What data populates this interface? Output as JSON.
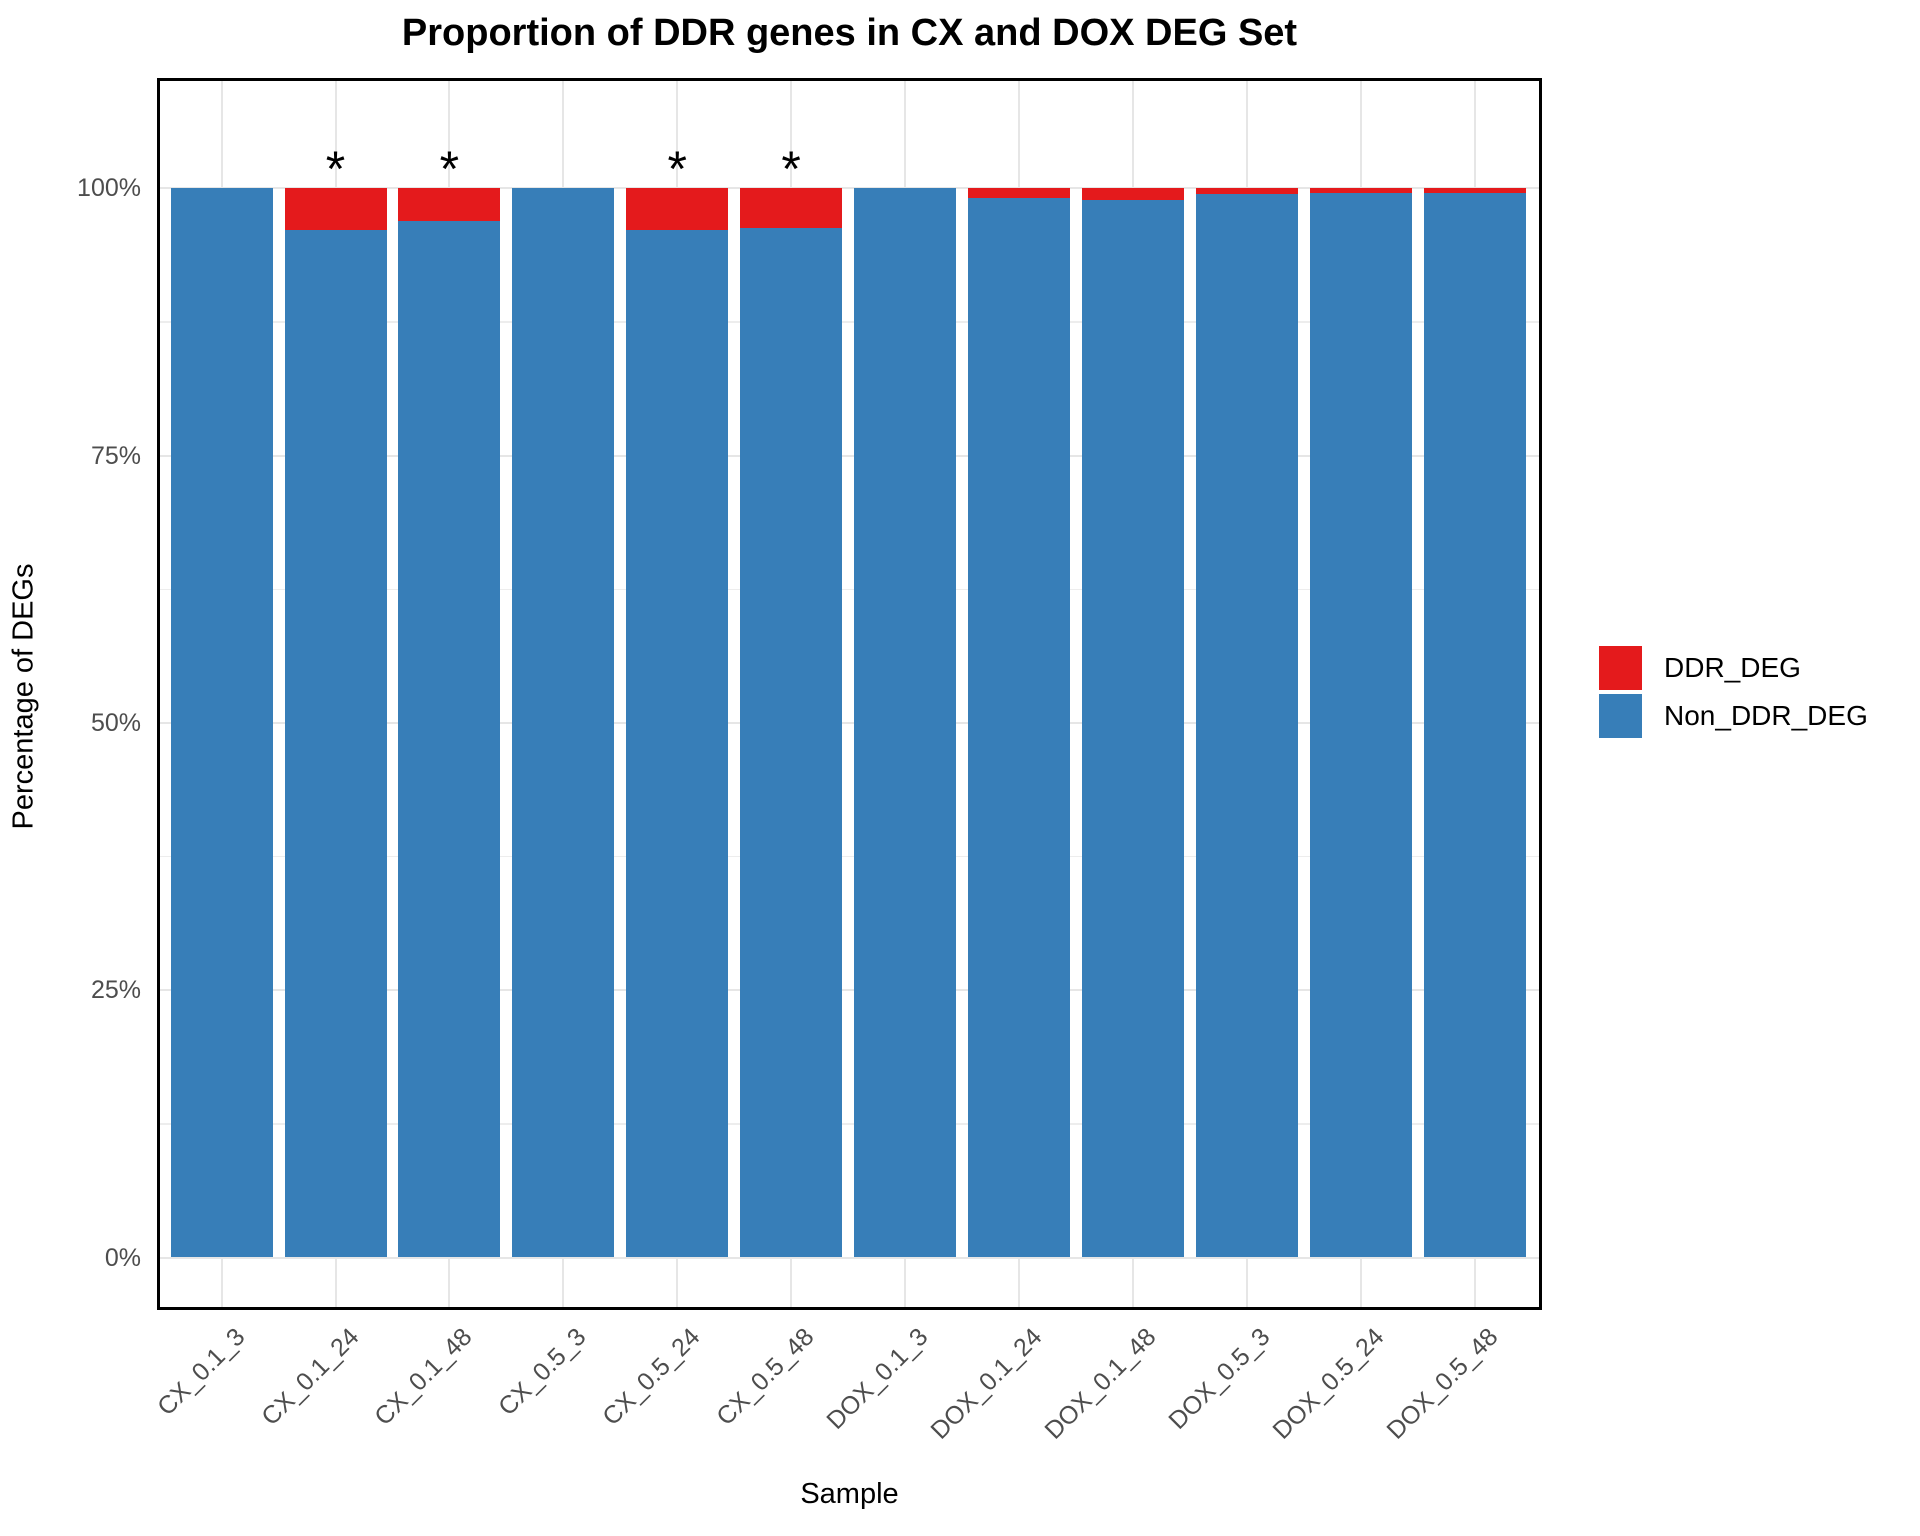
{
  "title": "Proportion of DDR genes in CX and DOX DEG Set",
  "chart_data": {
    "type": "bar",
    "stacked": true,
    "title": "Proportion of DDR genes in CX and DOX DEG Set",
    "xlabel": "Sample",
    "ylabel": "Percentage of DEGs",
    "categories": [
      "CX_0.1_3",
      "CX_0.1_24",
      "CX_0.1_48",
      "CX_0.5_3",
      "CX_0.5_24",
      "CX_0.5_48",
      "DOX_0.1_3",
      "DOX_0.1_24",
      "DOX_0.1_48",
      "DOX_0.5_3",
      "DOX_0.5_24",
      "DOX_0.5_48"
    ],
    "series": [
      {
        "name": "DDR_DEG",
        "color": "#e41a1c",
        "values": [
          0,
          3.9,
          3.1,
          0,
          3.9,
          3.7,
          0,
          0.9,
          1.1,
          0.5,
          0.4,
          0.4
        ]
      },
      {
        "name": "Non_DDR_DEG",
        "color": "#377eb8",
        "values": [
          100,
          96.1,
          96.9,
          100,
          96.1,
          96.3,
          100,
          99.1,
          98.9,
          99.5,
          99.6,
          99.6
        ]
      }
    ],
    "significance_marker": "*",
    "significant_categories": [
      "CX_0.1_24",
      "CX_0.1_48",
      "CX_0.5_24",
      "CX_0.5_48"
    ],
    "ytick_labels": [
      "0%",
      "25%",
      "50%",
      "75%",
      "100%"
    ],
    "ytick_values": [
      0,
      25,
      50,
      75,
      100
    ],
    "ytick_minor_values": [
      12.5,
      37.5,
      62.5,
      87.5
    ],
    "ylim": [
      0,
      100
    ],
    "legend_position": "right",
    "grid": true
  }
}
